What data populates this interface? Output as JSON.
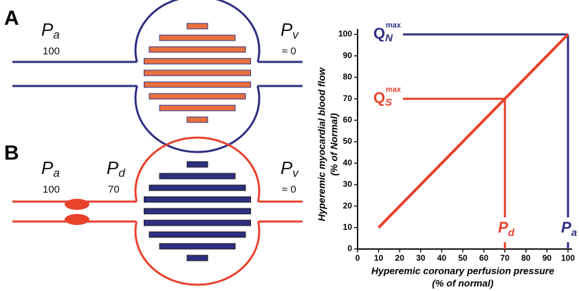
{
  "panel_a": {
    "label": "A",
    "inlet": {
      "symbol": "P",
      "sub": "a",
      "value": "100"
    },
    "outlet": {
      "symbol": "P",
      "sub": "v",
      "value": "≈ 0"
    }
  },
  "panel_b": {
    "label": "B",
    "inlet": {
      "symbol": "P",
      "sub": "a",
      "value": "100"
    },
    "stenosis": {
      "symbol": "P",
      "sub": "d",
      "value": "70"
    },
    "outlet": {
      "symbol": "P",
      "sub": "v",
      "value": "≈ 0"
    }
  },
  "chart_data": {
    "type": "line",
    "ylabel": [
      "Hyperemic myocardial blood flow",
      "(% of Normal)"
    ],
    "xlabel": [
      "Hyperemic coronary perfusion pressure",
      "(% of normal)"
    ],
    "xlim": [
      0,
      100
    ],
    "xticks": [
      0,
      10,
      20,
      30,
      40,
      50,
      60,
      70,
      80,
      90,
      100
    ],
    "ylim": [
      0,
      100
    ],
    "yticks": [
      0,
      10,
      20,
      30,
      40,
      50,
      60,
      70,
      80,
      90,
      100
    ],
    "series": [
      {
        "color": "#e8412c",
        "x": [
          10,
          100
        ],
        "values": [
          10,
          100
        ]
      }
    ],
    "reference_lines": [
      {
        "color": "#2e2f80",
        "text": "Q",
        "sub": "N",
        "sup": "max",
        "x": 100,
        "y": 100,
        "xtext": "P",
        "xsub": "a"
      },
      {
        "color": "#e8412c",
        "text": "Q",
        "sub": "S",
        "sup": "max",
        "x": 70,
        "y": 70,
        "xtext": "P",
        "xsub": "d"
      }
    ]
  }
}
